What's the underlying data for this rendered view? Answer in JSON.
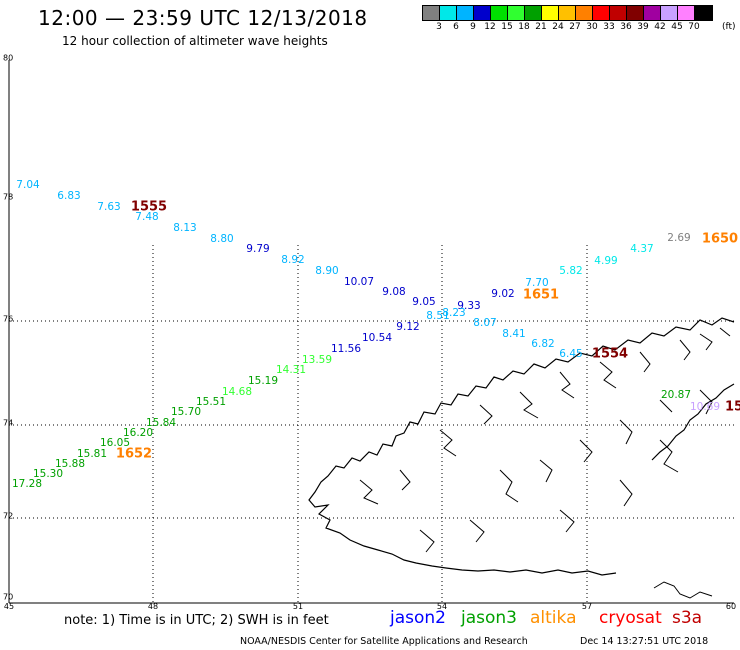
{
  "title": "12:00 — 23:59 UTC 12/13/2018",
  "subtitle": "12 hour collection of altimeter wave heights",
  "colorbar": {
    "colors": [
      "#808080",
      "#00e8e8",
      "#00b4ff",
      "#0000cc",
      "#00e000",
      "#30ff30",
      "#00a000",
      "#ffff00",
      "#ffc000",
      "#ff8000",
      "#ff0000",
      "#c00000",
      "#800000",
      "#a000a0",
      "#c8a0ff",
      "#ff80ff",
      "#000000"
    ],
    "labels": [
      "3",
      "6",
      "9",
      "12",
      "15",
      "18",
      "21",
      "24",
      "27",
      "30",
      "33",
      "36",
      "39",
      "42",
      "45",
      "70"
    ],
    "unit": "(ft)"
  },
  "axes": {
    "lat_labels": [
      "80",
      "78",
      "76",
      "74",
      "72",
      "70"
    ],
    "lon_labels": [
      "45",
      "48",
      "51",
      "54",
      "57",
      "60"
    ]
  },
  "wave_heights": [
    {
      "value": "7.04",
      "color": "#00b4ff"
    },
    {
      "value": "6.83",
      "color": "#00b4ff"
    },
    {
      "value": "7.63",
      "color": "#00b4ff"
    },
    {
      "value": "7.48",
      "color": "#00b4ff"
    },
    {
      "value": "8.13",
      "color": "#00b4ff"
    },
    {
      "value": "8.80",
      "color": "#00b4ff"
    },
    {
      "value": "9.79",
      "color": "#0000cc"
    },
    {
      "value": "8.92",
      "color": "#00b4ff"
    },
    {
      "value": "8.90",
      "color": "#00b4ff"
    },
    {
      "value": "10.07",
      "color": "#0000cc"
    },
    {
      "value": "9.08",
      "color": "#0000cc"
    },
    {
      "value": "9.05",
      "color": "#0000cc"
    },
    {
      "value": "9.33",
      "color": "#0000cc"
    },
    {
      "value": "9.02",
      "color": "#0000cc"
    },
    {
      "value": "8.51",
      "color": "#00b4ff"
    },
    {
      "value": "8.23",
      "color": "#00b4ff"
    },
    {
      "value": "9.12",
      "color": "#0000cc"
    },
    {
      "value": "8.07",
      "color": "#00b4ff"
    },
    {
      "value": "8.41",
      "color": "#00b4ff"
    },
    {
      "value": "6.82",
      "color": "#00b4ff"
    },
    {
      "value": "6.45",
      "color": "#00b4ff"
    },
    {
      "value": "7.70",
      "color": "#00b4ff"
    },
    {
      "value": "5.82",
      "color": "#00e8e8"
    },
    {
      "value": "4.99",
      "color": "#00e8e8"
    },
    {
      "value": "4.37",
      "color": "#00e8e8"
    },
    {
      "value": "2.69",
      "color": "#808080"
    },
    {
      "value": "10.54",
      "color": "#0000cc"
    },
    {
      "value": "11.56",
      "color": "#0000cc"
    },
    {
      "value": "13.59",
      "color": "#30ff30"
    },
    {
      "value": "14.31",
      "color": "#30ff30"
    },
    {
      "value": "15.19",
      "color": "#00a000"
    },
    {
      "value": "14.68",
      "color": "#30ff30"
    },
    {
      "value": "15.51",
      "color": "#00a000"
    },
    {
      "value": "15.70",
      "color": "#00a000"
    },
    {
      "value": "15.84",
      "color": "#00a000"
    },
    {
      "value": "16.20",
      "color": "#00a000"
    },
    {
      "value": "16.05",
      "color": "#00a000"
    },
    {
      "value": "15.81",
      "color": "#00a000"
    },
    {
      "value": "15.88",
      "color": "#00a000"
    },
    {
      "value": "15.30",
      "color": "#00a000"
    },
    {
      "value": "17.28",
      "color": "#00a000"
    },
    {
      "value": "20.87",
      "color": "#00a000"
    },
    {
      "value": "10.69",
      "color": "#c8a0ff"
    }
  ],
  "time_labels": [
    {
      "value": "1555",
      "color": "#800000"
    },
    {
      "value": "1651",
      "color": "#ff8000"
    },
    {
      "value": "1650",
      "color": "#ff8000"
    },
    {
      "value": "1554",
      "color": "#800000"
    },
    {
      "value": "1652",
      "color": "#ff8000"
    },
    {
      "value": "15",
      "color": "#800000"
    }
  ],
  "footer": {
    "note": "note:  1) Time is in UTC;  2) SWH is in feet",
    "satellites": [
      {
        "name": "jason2",
        "color": "#0000ff"
      },
      {
        "name": "jason3",
        "color": "#00a000"
      },
      {
        "name": "altika",
        "color": "#ff9000"
      },
      {
        "name": "cryosat",
        "color": "#ff0000"
      },
      {
        "name": "s3a",
        "color": "#c00000"
      }
    ],
    "credit": "NOAA/NESDIS Center for Satellite Applications and Research",
    "timestamp": "Dec 14 13:27:51 UTC 2018"
  }
}
